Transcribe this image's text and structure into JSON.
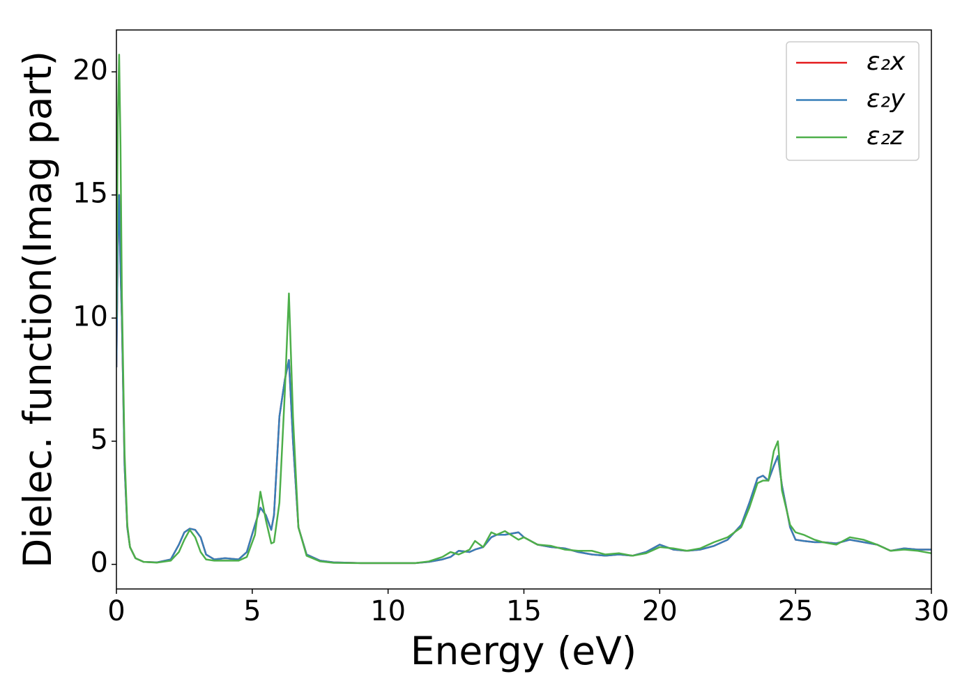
{
  "chart_data": {
    "type": "line",
    "xlabel": "Energy (eV)",
    "ylabel": "Dielec. function(Imag part)",
    "x": [
      0,
      0.05,
      0.1,
      0.15,
      0.2,
      0.3,
      0.4,
      0.5,
      0.7,
      1,
      1.5,
      2,
      2.3,
      2.5,
      2.7,
      2.9,
      3.1,
      3.3,
      3.6,
      4,
      4.5,
      4.8,
      5.1,
      5.3,
      5.5,
      5.7,
      5.8,
      6.0,
      6.2,
      6.35,
      6.5,
      6.7,
      7,
      7.5,
      8,
      9,
      10,
      11,
      11.5,
      12,
      12.3,
      12.6,
      13,
      13.2,
      13.5,
      13.8,
      14,
      14.3,
      14.8,
      15,
      15.5,
      16,
      16.5,
      17,
      17.5,
      18,
      18.5,
      19,
      19.5,
      20,
      20.5,
      21,
      21.5,
      22,
      22.5,
      23,
      23.3,
      23.6,
      23.8,
      24,
      24.2,
      24.35,
      24.5,
      24.8,
      25,
      25.3,
      25.7,
      26,
      26.5,
      27,
      27.5,
      28,
      28.5,
      29,
      29.5,
      30
    ],
    "series": [
      {
        "name": "ε₂x",
        "color": "#e41a1c",
        "values": [
          8,
          13,
          15,
          12,
          10,
          4,
          1.5,
          0.7,
          0.25,
          0.1,
          0.08,
          0.2,
          0.8,
          1.3,
          1.45,
          1.4,
          1.1,
          0.4,
          0.2,
          0.25,
          0.2,
          0.5,
          1.6,
          2.3,
          2.0,
          1.4,
          2,
          6,
          7.5,
          8.3,
          5,
          1.5,
          0.4,
          0.15,
          0.08,
          0.05,
          0.05,
          0.05,
          0.1,
          0.2,
          0.3,
          0.55,
          0.5,
          0.6,
          0.7,
          1.1,
          1.2,
          1.2,
          1.3,
          1.1,
          0.8,
          0.7,
          0.65,
          0.5,
          0.4,
          0.35,
          0.4,
          0.35,
          0.5,
          0.8,
          0.6,
          0.55,
          0.6,
          0.75,
          1.0,
          1.6,
          2.5,
          3.5,
          3.6,
          3.4,
          4.0,
          4.4,
          3.2,
          1.5,
          1.0,
          0.95,
          0.9,
          0.9,
          0.85,
          1.0,
          0.9,
          0.8,
          0.55,
          0.65,
          0.6,
          0.6
        ]
      },
      {
        "name": "ε₂y",
        "color": "#377eb8",
        "values": [
          8,
          13,
          15,
          12,
          10,
          4,
          1.5,
          0.7,
          0.25,
          0.1,
          0.08,
          0.2,
          0.8,
          1.3,
          1.45,
          1.4,
          1.1,
          0.4,
          0.2,
          0.25,
          0.2,
          0.5,
          1.6,
          2.3,
          2.0,
          1.4,
          2,
          6,
          7.5,
          8.3,
          5,
          1.5,
          0.4,
          0.15,
          0.08,
          0.05,
          0.05,
          0.05,
          0.1,
          0.2,
          0.3,
          0.55,
          0.5,
          0.6,
          0.7,
          1.1,
          1.2,
          1.2,
          1.3,
          1.1,
          0.8,
          0.7,
          0.65,
          0.5,
          0.4,
          0.35,
          0.4,
          0.35,
          0.5,
          0.8,
          0.6,
          0.55,
          0.6,
          0.75,
          1.0,
          1.6,
          2.5,
          3.5,
          3.6,
          3.4,
          4.0,
          4.4,
          3.2,
          1.5,
          1.0,
          0.95,
          0.9,
          0.9,
          0.85,
          1.0,
          0.9,
          0.8,
          0.55,
          0.65,
          0.6,
          0.6
        ]
      },
      {
        "name": "ε₂z",
        "color": "#4daf4a",
        "values": [
          10,
          18,
          20.7,
          17,
          11,
          4.5,
          1.6,
          0.7,
          0.25,
          0.1,
          0.07,
          0.15,
          0.5,
          1.0,
          1.4,
          1.1,
          0.5,
          0.2,
          0.15,
          0.15,
          0.15,
          0.3,
          1.2,
          2.95,
          1.8,
          0.85,
          0.9,
          2.5,
          7,
          11,
          6,
          1.5,
          0.35,
          0.12,
          0.06,
          0.05,
          0.05,
          0.05,
          0.12,
          0.3,
          0.5,
          0.4,
          0.6,
          0.95,
          0.7,
          1.3,
          1.2,
          1.35,
          1.0,
          1.1,
          0.8,
          0.75,
          0.6,
          0.55,
          0.55,
          0.4,
          0.45,
          0.35,
          0.45,
          0.7,
          0.65,
          0.55,
          0.65,
          0.9,
          1.1,
          1.5,
          2.3,
          3.3,
          3.4,
          3.4,
          4.6,
          5.0,
          3.0,
          1.6,
          1.3,
          1.2,
          1.0,
          0.9,
          0.8,
          1.1,
          1.0,
          0.8,
          0.55,
          0.6,
          0.55,
          0.45
        ]
      }
    ],
    "xlim": [
      0,
      30
    ],
    "xticks": [
      0,
      5,
      10,
      15,
      20,
      25,
      30
    ],
    "ylim": [
      -1,
      21.7
    ],
    "yticks": [
      0,
      5,
      10,
      15,
      20
    ],
    "grid": false,
    "legend": "upper right"
  }
}
